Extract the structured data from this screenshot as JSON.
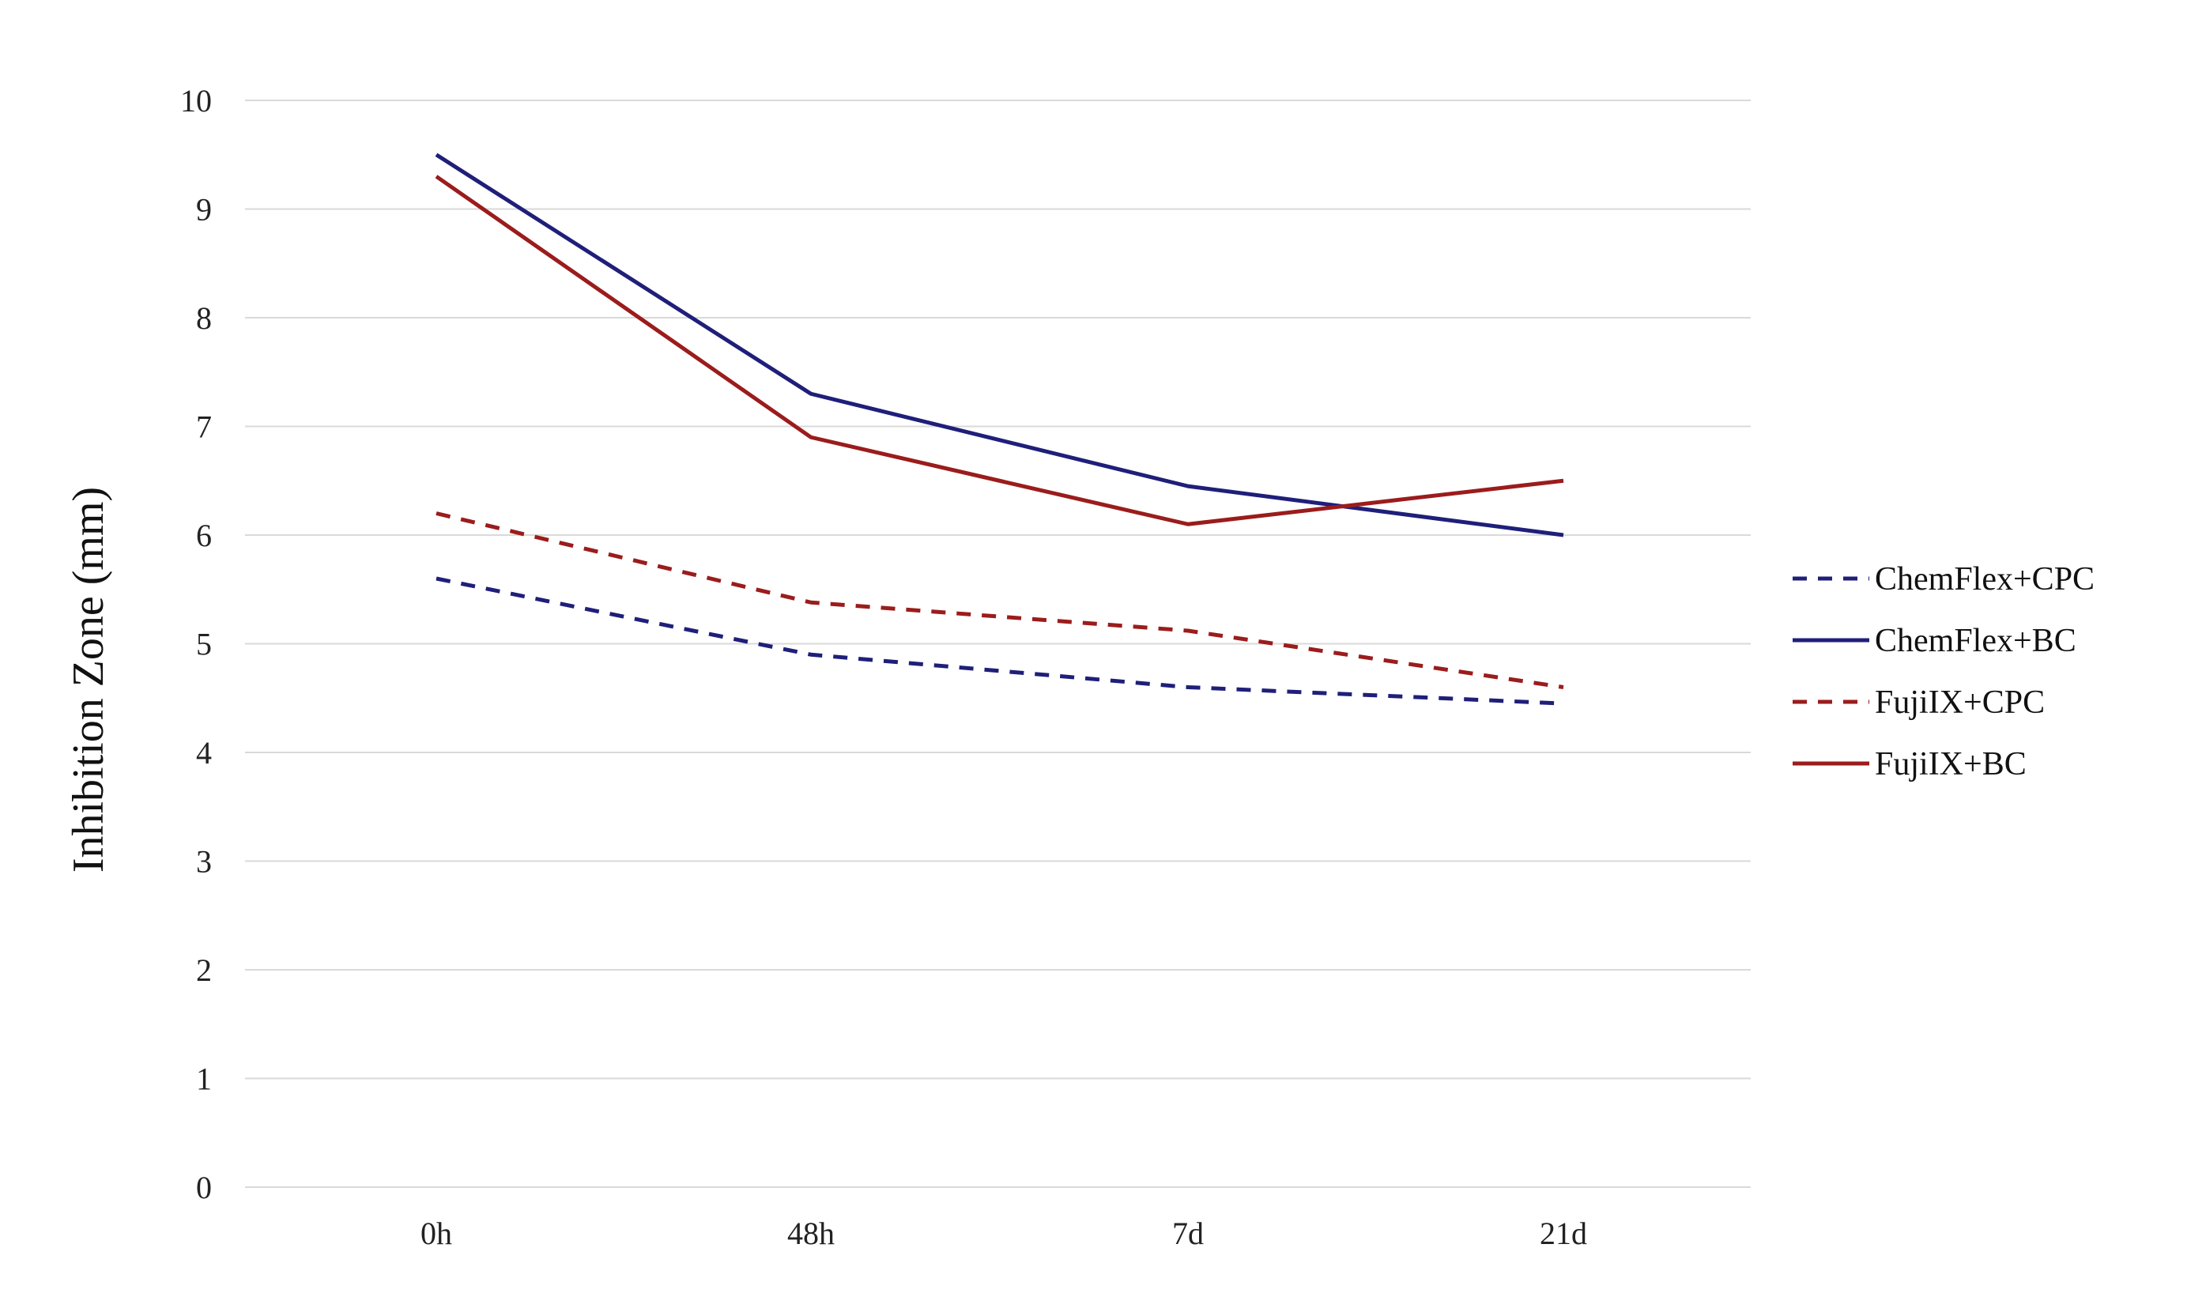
{
  "chart_data": {
    "type": "line",
    "title": "",
    "xlabel": "",
    "ylabel": "Inhibition Zone (mm)",
    "ylim": [
      0,
      10
    ],
    "y_ticks": [
      0,
      1,
      2,
      3,
      4,
      5,
      6,
      7,
      8,
      9,
      10
    ],
    "categories": [
      "0h",
      "48h",
      "7d",
      "21d"
    ],
    "grid": true,
    "legend_position": "right",
    "series": [
      {
        "name": "ChemFlex+CPC",
        "values": [
          5.6,
          4.9,
          4.6,
          4.45
        ],
        "color": "#1f1f7a",
        "dash": true
      },
      {
        "name": "ChemFlex+BC",
        "values": [
          9.5,
          7.3,
          6.45,
          6.0
        ],
        "color": "#1f1f7a",
        "dash": false
      },
      {
        "name": "FujiIX+CPC",
        "values": [
          6.2,
          5.38,
          5.12,
          4.6
        ],
        "color": "#9b1c1c",
        "dash": true
      },
      {
        "name": "FujiIX+BC",
        "values": [
          9.3,
          6.9,
          6.1,
          6.5
        ],
        "color": "#9b1c1c",
        "dash": false
      }
    ]
  }
}
